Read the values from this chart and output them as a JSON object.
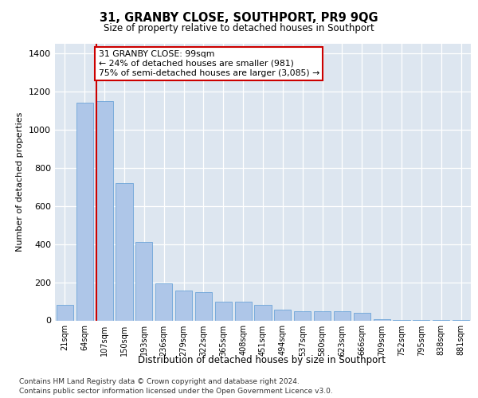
{
  "title": "31, GRANBY CLOSE, SOUTHPORT, PR9 9QG",
  "subtitle": "Size of property relative to detached houses in Southport",
  "xlabel": "Distribution of detached houses by size in Southport",
  "ylabel": "Number of detached properties",
  "categories": [
    "21sqm",
    "64sqm",
    "107sqm",
    "150sqm",
    "193sqm",
    "236sqm",
    "279sqm",
    "322sqm",
    "365sqm",
    "408sqm",
    "451sqm",
    "494sqm",
    "537sqm",
    "580sqm",
    "623sqm",
    "666sqm",
    "709sqm",
    "752sqm",
    "795sqm",
    "838sqm",
    "881sqm"
  ],
  "values": [
    80,
    1140,
    1150,
    720,
    410,
    195,
    155,
    150,
    100,
    100,
    80,
    55,
    50,
    50,
    50,
    40,
    8,
    2,
    2,
    2,
    2
  ],
  "bar_color": "#aec6e8",
  "bar_edge_color": "#5b9bd5",
  "property_line_color": "#cc0000",
  "annotation_text": "31 GRANBY CLOSE: 99sqm\n← 24% of detached houses are smaller (981)\n75% of semi-detached houses are larger (3,085) →",
  "annotation_box_facecolor": "#ffffff",
  "annotation_box_edgecolor": "#cc0000",
  "ylim": [
    0,
    1450
  ],
  "yticks": [
    0,
    200,
    400,
    600,
    800,
    1000,
    1200,
    1400
  ],
  "bg_color": "#dde6f0",
  "footer1": "Contains HM Land Registry data © Crown copyright and database right 2024.",
  "footer2": "Contains public sector information licensed under the Open Government Licence v3.0."
}
